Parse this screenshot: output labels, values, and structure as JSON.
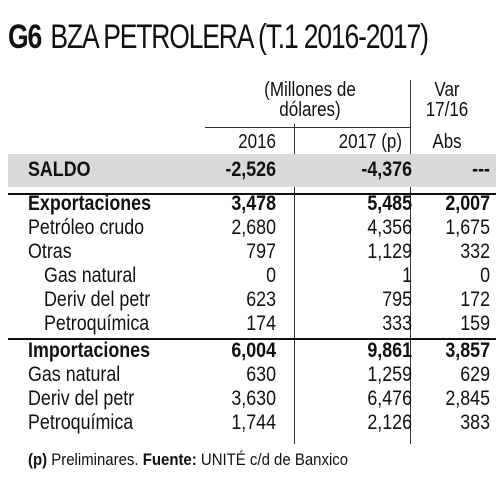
{
  "title": {
    "code": "G6",
    "text": "BZA PETROLERA (T.1 2016-2017)"
  },
  "header": {
    "group_line1": "(Millones de",
    "group_line2": "dólares)",
    "var_line1": "Var",
    "var_line2": "17/16",
    "var_line3": "Abs",
    "year_2016": "2016",
    "year_2017": "2017 (p)"
  },
  "rows": {
    "saldo": {
      "label": "SALDO",
      "v2016": "-2,526",
      "v2017": "-4,376",
      "var": "---"
    },
    "exportaciones": {
      "label": "Exportaciones",
      "v2016": "3,478",
      "v2017": "5,485",
      "var": "2,007"
    },
    "petroleo_crudo": {
      "label": "Petróleo crudo",
      "v2016": "2,680",
      "v2017": "4,356",
      "var": "1,675"
    },
    "otras": {
      "label": "Otras",
      "v2016": "797",
      "v2017": "1,129",
      "var": "332"
    },
    "gas_natural_exp": {
      "label": "Gas natural",
      "v2016": "0",
      "v2017": "1",
      "var": "0"
    },
    "deriv_exp": {
      "label": "Deriv del petr",
      "v2016": "623",
      "v2017": "795",
      "var": "172"
    },
    "petroq_exp": {
      "label": "Petroquímica",
      "v2016": "174",
      "v2017": "333",
      "var": "159"
    },
    "importaciones": {
      "label": "Importaciones",
      "v2016": "6,004",
      "v2017": "9,861",
      "var": "3,857"
    },
    "gas_natural_imp": {
      "label": "Gas natural",
      "v2016": "630",
      "v2017": "1,259",
      "var": "629"
    },
    "deriv_imp": {
      "label": "Deriv del petr",
      "v2016": "3,630",
      "v2017": "6,476",
      "var": "2,845"
    },
    "petroq_imp": {
      "label": "Petroquímica",
      "v2016": "1,744",
      "v2017": "2,126",
      "var": "383"
    }
  },
  "footer": {
    "p_marker": "(p)",
    "p_text": " Preliminares. ",
    "source_label": "Fuente:",
    "source_text": " UNITÉ c/d de Banxico"
  },
  "colors": {
    "saldo_band": "#d9d9d9",
    "text": "#111111"
  }
}
